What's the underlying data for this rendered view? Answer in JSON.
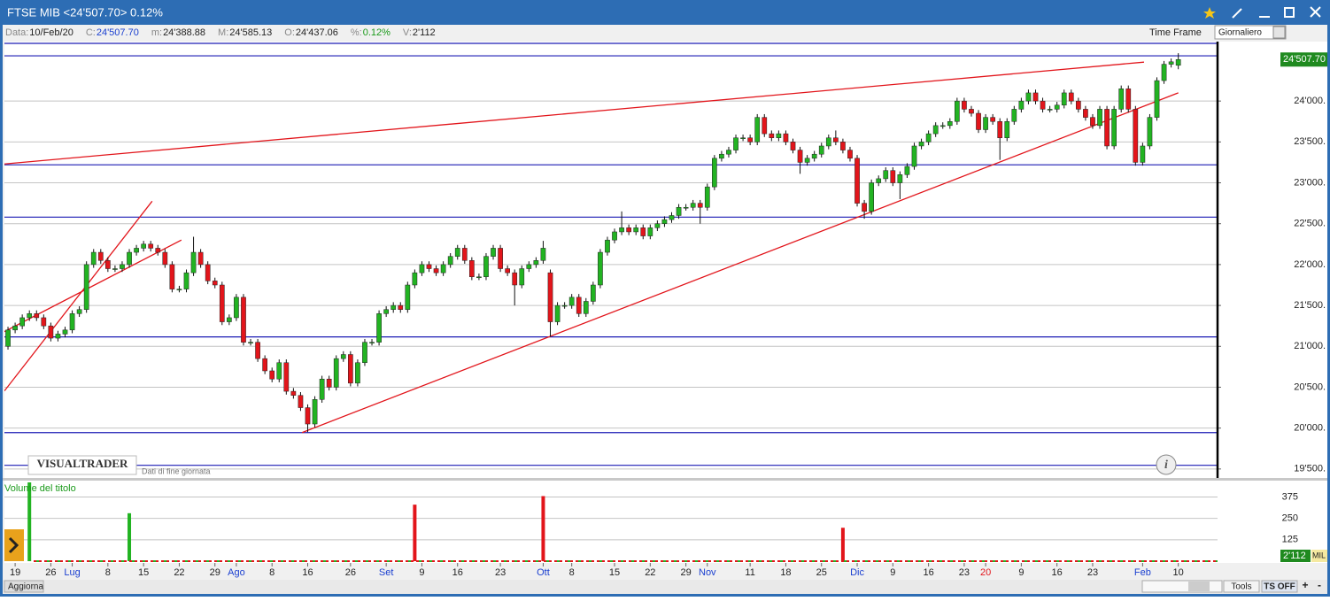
{
  "window": {
    "title": "FTSE MIB <24'507.70> 0.12%"
  },
  "info": [
    [
      "Data:",
      "10/Feb/20"
    ],
    [
      "C:",
      "24'507.70"
    ],
    [
      "m:",
      "24'388.88"
    ],
    [
      "M:",
      "24'585.13"
    ],
    [
      "O:",
      "24'437.06"
    ],
    [
      "%:",
      "0.12%"
    ],
    [
      "V:",
      "2'112"
    ]
  ],
  "time_frame": {
    "label": "Time Frame",
    "value": "Giornaliero"
  },
  "footer": {
    "logo": "VISUALTRADER",
    "note": "Dati di fine giornata",
    "update": "Aggiorna",
    "tools": "Tools",
    "ts": "TS OFF"
  },
  "chart_data": [
    {
      "type": "candlestick",
      "up_color": "#22b322",
      "down_color": "#e2151b",
      "xlim": [
        -0.5,
        169.5
      ],
      "ylim": [
        19390,
        24727
      ],
      "xticks": [
        {
          "value": 1,
          "label": "19"
        },
        {
          "value": 6,
          "label": "26"
        },
        {
          "value": 9,
          "label": "Lug"
        },
        {
          "value": 14,
          "label": "8"
        },
        {
          "value": 19,
          "label": "15"
        },
        {
          "value": 24,
          "label": "22"
        },
        {
          "value": 29,
          "label": "29"
        },
        {
          "value": 32,
          "label": "Ago"
        },
        {
          "value": 37,
          "label": "8"
        },
        {
          "value": 42,
          "label": "16"
        },
        {
          "value": 48,
          "label": "26"
        },
        {
          "value": 53,
          "label": "Set"
        },
        {
          "value": 58,
          "label": "9"
        },
        {
          "value": 63,
          "label": "16"
        },
        {
          "value": 69,
          "label": "23"
        },
        {
          "value": 75,
          "label": "Ott"
        },
        {
          "value": 79,
          "label": "8"
        },
        {
          "value": 85,
          "label": "15"
        },
        {
          "value": 90,
          "label": "22"
        },
        {
          "value": 95,
          "label": "29"
        },
        {
          "value": 98,
          "label": "Nov"
        },
        {
          "value": 104,
          "label": "11"
        },
        {
          "value": 109,
          "label": "18"
        },
        {
          "value": 114,
          "label": "25"
        },
        {
          "value": 119,
          "label": "Dic"
        },
        {
          "value": 124,
          "label": "9"
        },
        {
          "value": 129,
          "label": "16"
        },
        {
          "value": 134,
          "label": "23"
        },
        {
          "value": 137,
          "label": "20"
        },
        {
          "value": 142,
          "label": "9"
        },
        {
          "value": 147,
          "label": "16"
        },
        {
          "value": 152,
          "label": "23"
        },
        {
          "value": 159,
          "label": "Feb"
        },
        {
          "value": 164,
          "label": "10"
        }
      ],
      "xtick_colors": [
        "#222",
        "#222",
        "#1a3fd0",
        "#222",
        "#222",
        "#222",
        "#222",
        "#1a3fd0",
        "#222",
        "#222",
        "#222",
        "#1a3fd0",
        "#222",
        "#222",
        "#222",
        "#1a3fd0",
        "#222",
        "#222",
        "#222",
        "#222",
        "#1a3fd0",
        "#222",
        "#222",
        "#222",
        "#1a3fd0",
        "#222",
        "#222",
        "#222",
        "#e2151b",
        "#222",
        "#222",
        "#222",
        "#1a3fd0",
        "#222"
      ],
      "yticks": [
        {
          "value": 19500,
          "label": "19'500."
        },
        {
          "value": 20000,
          "label": "20'000."
        },
        {
          "value": 20500,
          "label": "20'500."
        },
        {
          "value": 21000,
          "label": "21'000."
        },
        {
          "value": 21500,
          "label": "21'500."
        },
        {
          "value": 22000,
          "label": "22'000."
        },
        {
          "value": 22500,
          "label": "22'500."
        },
        {
          "value": 23000,
          "label": "23'000."
        },
        {
          "value": 23500,
          "label": "23'500."
        },
        {
          "value": 24000,
          "label": "24'000."
        }
      ],
      "grid": true,
      "open": [
        21000,
        21200,
        21250,
        21350,
        21400,
        21350,
        21250,
        21100,
        21150,
        21200,
        21400,
        21450,
        22000,
        22150,
        22050,
        21950,
        21950,
        22000,
        22150,
        22200,
        22250,
        22200,
        22150,
        22000,
        21700,
        21700,
        21900,
        22150,
        22000,
        21800,
        21750,
        21300,
        21350,
        21600,
        21050,
        21050,
        20850,
        20700,
        20600,
        20800,
        20450,
        20400,
        20250,
        20050,
        20350,
        20600,
        20500,
        20850,
        20900,
        20550,
        20800,
        21050,
        21050,
        21400,
        21450,
        21500,
        21450,
        21750,
        21900,
        22000,
        21950,
        21900,
        22000,
        22100,
        22200,
        22050,
        21850,
        21850,
        22100,
        22200,
        21950,
        21900,
        21750,
        21950,
        22000,
        22050,
        21900,
        21300,
        21500,
        21500,
        21600,
        21400,
        21550,
        21750,
        22150,
        22300,
        22400,
        22450,
        22400,
        22450,
        22350,
        22450,
        22500,
        22550,
        22600,
        22700,
        22700,
        22750,
        22700,
        22950,
        23300,
        23350,
        23400,
        23550,
        23550,
        23500,
        23800,
        23600,
        23550,
        23600,
        23500,
        23400,
        23250,
        23300,
        23350,
        23450,
        23550,
        23500,
        23400,
        23300,
        22750,
        22650,
        23000,
        23050,
        23150,
        23000,
        23100,
        23200,
        23450,
        23500,
        23600,
        23700,
        23700,
        23750,
        24000,
        23900,
        23850,
        23650,
        23800,
        23750,
        23550,
        23750,
        23900,
        24000,
        24100,
        24000,
        23900,
        23900,
        23950,
        24100,
        24000,
        23900,
        23800,
        23700,
        23900,
        23450,
        23900,
        24150,
        23900,
        23250,
        23450,
        23800,
        24250,
        24450,
        24437.06
      ],
      "high": [
        21240,
        21290,
        21390,
        21440,
        21440,
        21390,
        21290,
        21190,
        21240,
        21440,
        21490,
        22040,
        22190,
        22190,
        22090,
        21990,
        22040,
        22190,
        22240,
        22290,
        22290,
        22240,
        22190,
        22040,
        21740,
        21940,
        22340,
        22190,
        22040,
        21840,
        21790,
        21390,
        21640,
        21640,
        21090,
        21090,
        20890,
        20740,
        20840,
        20840,
        20490,
        20440,
        20290,
        20390,
        20640,
        20640,
        20890,
        20940,
        20940,
        20840,
        21090,
        21090,
        21440,
        21490,
        21540,
        21540,
        21790,
        21940,
        22040,
        22040,
        21990,
        22040,
        22140,
        22240,
        22240,
        22090,
        21890,
        22140,
        22240,
        22240,
        21990,
        21940,
        21990,
        22040,
        22090,
        22290,
        21940,
        21540,
        21540,
        21640,
        21640,
        21590,
        21790,
        22190,
        22340,
        22440,
        22650,
        22490,
        22490,
        22490,
        22490,
        22540,
        22590,
        22640,
        22740,
        22740,
        22790,
        22790,
        22990,
        23340,
        23390,
        23440,
        23590,
        23590,
        23590,
        23840,
        23840,
        23640,
        23640,
        23640,
        23540,
        23440,
        23340,
        23390,
        23490,
        23590,
        23640,
        23540,
        23440,
        23340,
        22790,
        23040,
        23090,
        23190,
        23190,
        23140,
        23240,
        23490,
        23540,
        23640,
        23740,
        23740,
        23790,
        24040,
        24040,
        23940,
        23890,
        23840,
        23840,
        23790,
        23790,
        23940,
        24040,
        24140,
        24140,
        24040,
        23940,
        23990,
        24140,
        24140,
        24040,
        23940,
        23840,
        23940,
        23940,
        23940,
        24190,
        24190,
        23940,
        23490,
        23840,
        24290,
        24490,
        24520,
        24585.13
      ],
      "low": [
        20960,
        21160,
        21210,
        21310,
        21310,
        21210,
        21060,
        21060,
        21110,
        21160,
        21360,
        21410,
        21960,
        22010,
        21910,
        21910,
        21910,
        21960,
        22110,
        22160,
        22160,
        22110,
        21960,
        21660,
        21660,
        21660,
        21860,
        21960,
        21760,
        21710,
        21260,
        21260,
        21310,
        21010,
        21010,
        20810,
        20660,
        20560,
        20560,
        20410,
        20360,
        20210,
        19950,
        20010,
        20310,
        20460,
        20460,
        20810,
        20510,
        20510,
        20760,
        21010,
        21010,
        21360,
        21410,
        21410,
        21410,
        21710,
        21860,
        21910,
        21860,
        21860,
        21960,
        22060,
        22010,
        21810,
        21810,
        21810,
        22060,
        21910,
        21860,
        21500,
        21710,
        21910,
        21960,
        22010,
        21120,
        21260,
        21460,
        21460,
        21360,
        21360,
        21510,
        21710,
        22110,
        22260,
        22360,
        22360,
        22360,
        22310,
        22310,
        22410,
        22460,
        22510,
        22560,
        22660,
        22660,
        22500,
        22660,
        22910,
        23260,
        23310,
        23360,
        23510,
        23460,
        23460,
        23560,
        23510,
        23510,
        23460,
        23360,
        23110,
        23210,
        23260,
        23310,
        23410,
        23460,
        23360,
        23260,
        22710,
        22560,
        22610,
        22960,
        23010,
        22960,
        22800,
        23060,
        23160,
        23410,
        23460,
        23560,
        23660,
        23660,
        23710,
        23860,
        23810,
        23610,
        23610,
        23710,
        23280,
        23510,
        23710,
        23860,
        23960,
        23960,
        23860,
        23860,
        23860,
        23910,
        23960,
        23860,
        23760,
        23660,
        23660,
        23410,
        23410,
        23860,
        23860,
        23210,
        23210,
        23410,
        23760,
        24210,
        24410,
        24388.88
      ],
      "close": [
        21200,
        21250,
        21350,
        21400,
        21350,
        21250,
        21100,
        21150,
        21200,
        21400,
        21450,
        22000,
        22150,
        22050,
        21950,
        21950,
        22000,
        22150,
        22200,
        22250,
        22200,
        22150,
        22000,
        21700,
        21700,
        21900,
        22150,
        22000,
        21800,
        21750,
        21300,
        21350,
        21600,
        21050,
        21050,
        20850,
        20700,
        20600,
        20800,
        20450,
        20400,
        20250,
        20050,
        20350,
        20600,
        20500,
        20850,
        20900,
        20550,
        20800,
        21050,
        21050,
        21400,
        21450,
        21500,
        21450,
        21750,
        21900,
        22000,
        21950,
        21900,
        22000,
        22100,
        22200,
        22050,
        21850,
        21850,
        22100,
        22200,
        21950,
        21900,
        21750,
        21950,
        22000,
        22050,
        22200,
        21300,
        21500,
        21500,
        21600,
        21400,
        21550,
        21750,
        22150,
        22300,
        22400,
        22450,
        22400,
        22450,
        22350,
        22450,
        22500,
        22550,
        22600,
        22700,
        22700,
        22750,
        22700,
        22950,
        23300,
        23350,
        23400,
        23550,
        23550,
        23500,
        23800,
        23600,
        23550,
        23600,
        23500,
        23400,
        23250,
        23300,
        23350,
        23450,
        23550,
        23500,
        23400,
        23300,
        22750,
        22650,
        23000,
        23050,
        23150,
        23000,
        23100,
        23200,
        23450,
        23500,
        23600,
        23700,
        23700,
        23750,
        24000,
        23900,
        23850,
        23650,
        23800,
        23750,
        23550,
        23750,
        23900,
        24000,
        24100,
        24000,
        23900,
        23900,
        23950,
        24100,
        24000,
        23900,
        23800,
        23700,
        23900,
        23450,
        23900,
        24150,
        23900,
        23250,
        23450,
        23800,
        24250,
        24450,
        24480,
        24507.7
      ],
      "last_label": "24'507.70",
      "levels": [
        24705,
        24553,
        23220,
        22580,
        21115,
        19945,
        19545
      ],
      "level_color": "#1c1cb4",
      "trendlines": [
        {
          "x": [
            -0.5,
            159.2
          ],
          "y": [
            23230,
            24476
          ]
        },
        {
          "x": [
            41.2,
            164
          ],
          "y": [
            19945,
            24100
          ]
        },
        {
          "x": [
            -0.5,
            20.2
          ],
          "y": [
            20455,
            22775
          ]
        },
        {
          "x": [
            -0.5,
            24.3
          ],
          "y": [
            21180,
            22300
          ]
        }
      ],
      "trend_color": "#e2151b"
    },
    {
      "type": "bar",
      "title": "Volume del titolo",
      "x": [
        3,
        17,
        57,
        75,
        117
      ],
      "values": [
        470,
        280,
        330,
        380,
        195
      ],
      "colors": [
        "#22b322",
        "#22b322",
        "#e2151b",
        "#e2151b",
        "#e2151b"
      ],
      "ylim": [
        0,
        460
      ],
      "yticks": [
        125,
        250,
        375
      ],
      "last_label": "2'112",
      "unit": "MIL"
    }
  ]
}
